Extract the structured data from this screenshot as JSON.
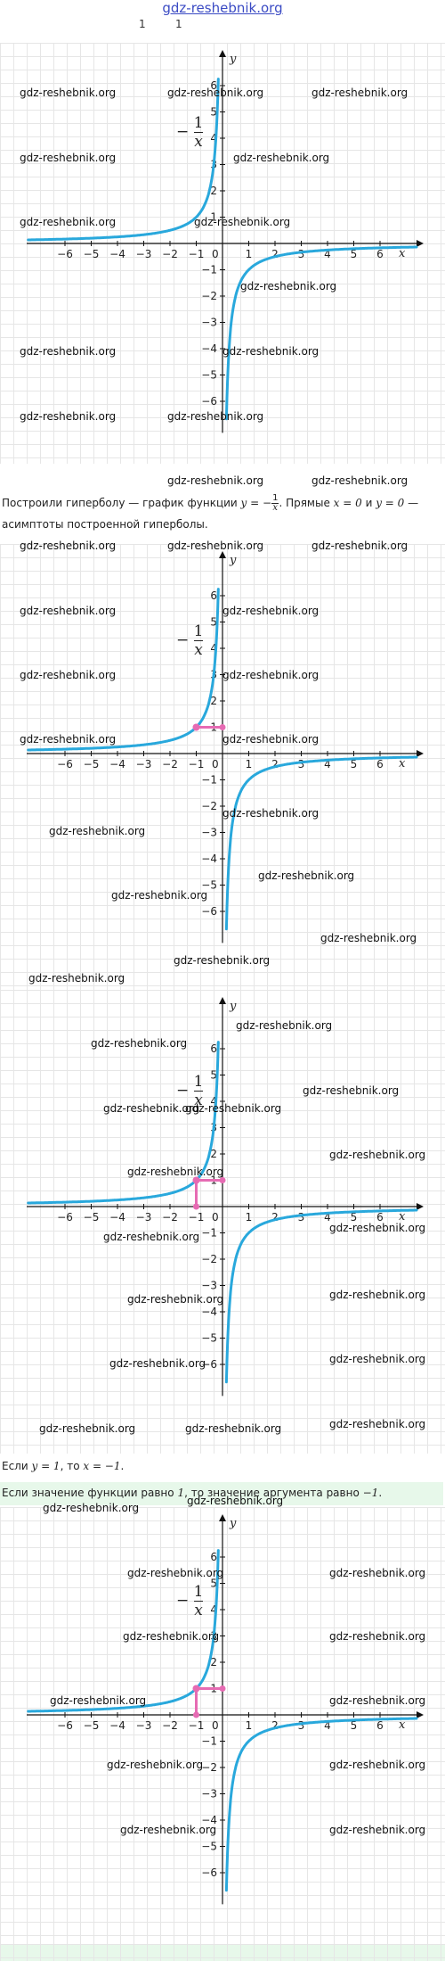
{
  "header": {
    "site_link": "gdz-reshebnik.org",
    "num_left": "1",
    "num_right": "1"
  },
  "watermark": "gdz-reshebnik.org",
  "graph_label": {
    "minus": "−",
    "numerator": "1",
    "denominator": "x"
  },
  "texts": {
    "t1_part1": "Построили гиперболу — график функции ",
    "t1_formula_lhs": "y = −",
    "t1_part2": ". Прямые ",
    "t1_eq1": "x = 0",
    "t1_and": " и ",
    "t1_eq2": "y = 0",
    "t1_part3": " —",
    "t1_line2": "асимптоты построенной гиперболы.",
    "t2_part1": "Если ",
    "t2_eq1": "y = 1",
    "t2_part2": ", то ",
    "t2_eq2": "x = −1",
    "t2_part3": ".",
    "t3_part1": "Если значение функции равно ",
    "t3_num": "1",
    "t3_part2": ", то значение аргумента равно ",
    "t3_val": "−1",
    "t3_part3": "."
  },
  "colors": {
    "curve": "#29a8dc",
    "highlight": "#e66bb3",
    "axis": "#111111",
    "grid": "#e6e6e6"
  },
  "chart_data": [
    {
      "type": "line",
      "function": "y = -1/x",
      "xlim": [
        -7,
        7
      ],
      "ylim": [
        -7,
        7
      ],
      "x_ticks": [
        "-6",
        "-5",
        "-4",
        "-3",
        "-2",
        "-1",
        "1",
        "2",
        "3",
        "4",
        "5",
        "6"
      ],
      "y_ticks": [
        "6",
        "5",
        "4",
        "3",
        "2",
        "1",
        "-1",
        "-2",
        "-3",
        "-4",
        "-5",
        "-6"
      ],
      "xlabel": "x",
      "ylabel": "y",
      "origin_label": "0",
      "highlight_point": null
    },
    {
      "type": "line",
      "function": "y = -1/x",
      "xlim": [
        -7,
        7
      ],
      "ylim": [
        -7,
        7
      ],
      "x_ticks": [
        "-6",
        "-5",
        "-4",
        "-3",
        "-2",
        "-1",
        "1",
        "2",
        "3",
        "4",
        "5",
        "6"
      ],
      "y_ticks": [
        "6",
        "5",
        "4",
        "3",
        "2",
        "1",
        "-1",
        "-2",
        "-3",
        "-4",
        "-5",
        "-6"
      ],
      "xlabel": "x",
      "ylabel": "y",
      "origin_label": "0",
      "highlight_point": {
        "x": -1,
        "y": 1,
        "segment_to": "y-axis"
      }
    },
    {
      "type": "line",
      "function": "y = -1/x",
      "xlim": [
        -7,
        7
      ],
      "ylim": [
        -7,
        7
      ],
      "x_ticks": [
        "-6",
        "-5",
        "-4",
        "-3",
        "-2",
        "-1",
        "1",
        "2",
        "3",
        "4",
        "5",
        "6"
      ],
      "y_ticks": [
        "6",
        "5",
        "4",
        "3",
        "2",
        "1",
        "-1",
        "-2",
        "-3",
        "-4",
        "-5",
        "-6"
      ],
      "xlabel": "x",
      "ylabel": "y",
      "origin_label": "0",
      "highlight_point": {
        "x": -1,
        "y": 1,
        "segment_to": "both-axes"
      }
    },
    {
      "type": "line",
      "function": "y = -1/x",
      "xlim": [
        -7,
        7
      ],
      "ylim": [
        -7,
        7
      ],
      "x_ticks": [
        "-6",
        "-5",
        "-4",
        "-3",
        "-2",
        "-1",
        "1",
        "2",
        "3",
        "4",
        "5",
        "6"
      ],
      "y_ticks": [
        "6",
        "5",
        "4",
        "3",
        "2",
        "1",
        "-1",
        "-2",
        "-3",
        "-4",
        "-5",
        "-6"
      ],
      "xlabel": "x",
      "ylabel": "y",
      "origin_label": "0",
      "highlight_point": {
        "x": -1,
        "y": 1,
        "segment_to": "both-axes"
      }
    }
  ]
}
